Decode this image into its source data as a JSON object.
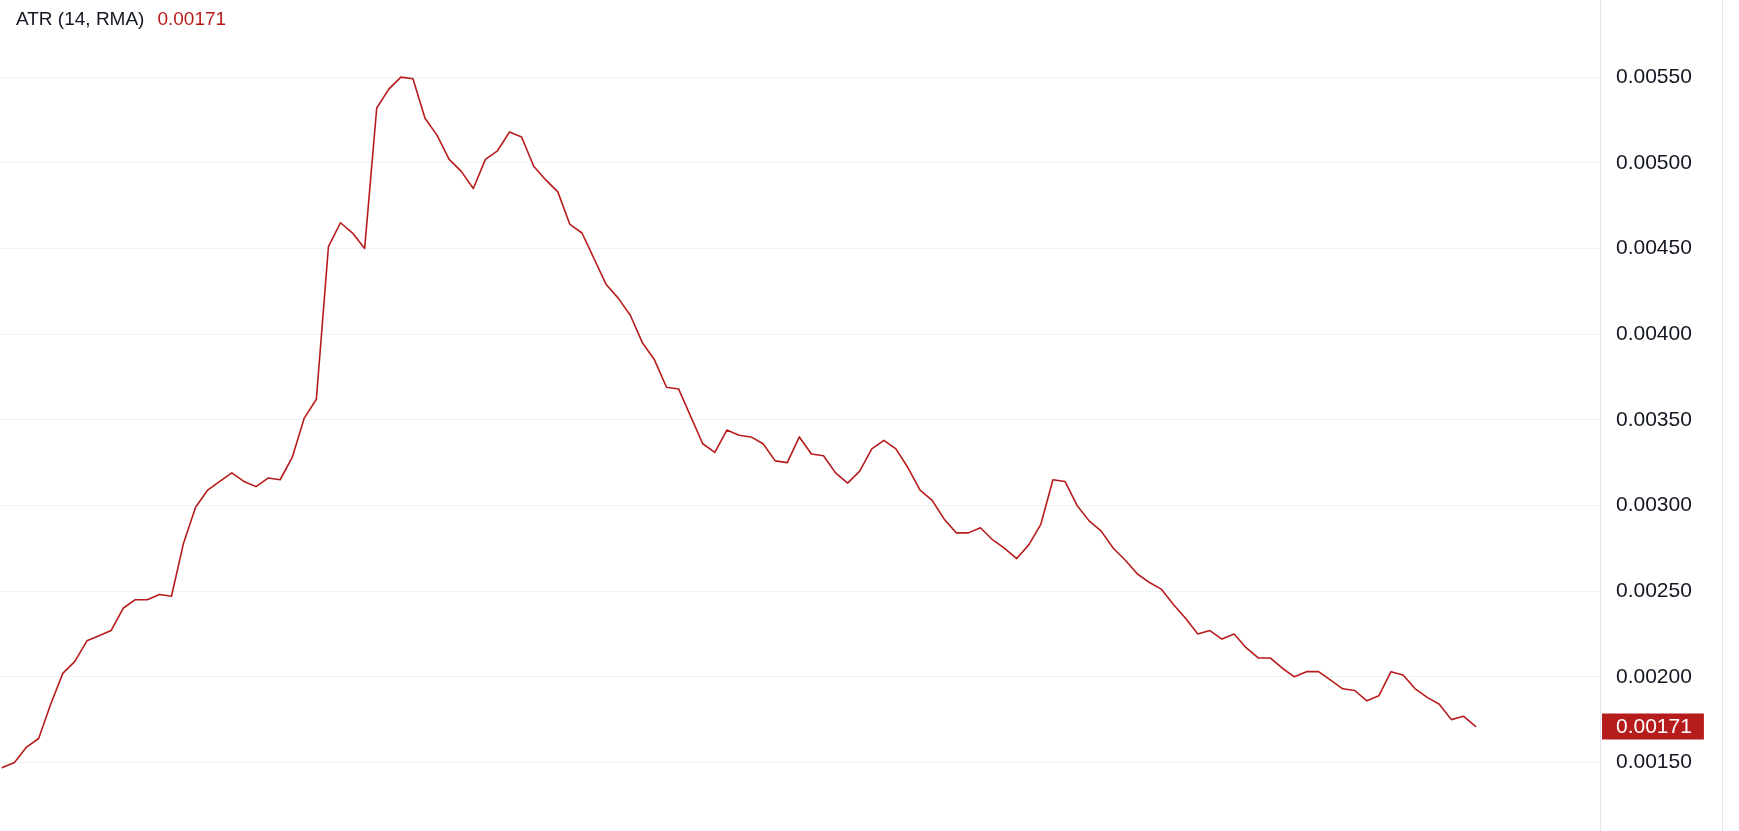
{
  "chart_data": {
    "type": "line",
    "title": "ATR (14, RMA)",
    "annotations": [
      "0.00171",
      "0.00171"
    ],
    "categories": [
      null,
      null,
      null,
      null,
      null,
      null,
      null,
      null,
      null,
      null,
      null,
      null,
      null,
      null,
      null,
      null,
      null,
      null,
      null,
      null,
      null,
      null,
      null,
      null,
      null,
      null,
      null,
      null,
      null,
      null,
      null,
      null,
      null,
      null,
      null,
      null,
      null,
      null,
      null,
      null,
      null,
      null,
      null,
      null,
      null,
      null,
      null,
      null,
      null,
      null,
      null,
      null,
      null,
      null,
      null,
      null,
      null,
      null,
      null,
      null,
      null,
      null,
      null,
      null,
      null,
      null,
      null,
      null,
      null,
      null,
      null,
      null,
      null,
      null,
      null,
      null,
      null,
      null,
      null,
      null,
      null,
      null,
      null,
      null,
      null,
      null,
      null,
      null,
      null,
      null,
      null,
      null,
      null,
      null,
      null,
      null,
      null,
      null,
      null,
      null,
      null,
      null,
      null,
      null,
      null,
      null,
      null,
      null,
      null,
      null,
      null,
      null,
      null,
      null,
      null,
      null,
      null,
      null,
      null,
      null,
      null,
      null,
      null
    ],
    "series": [
      {
        "color": "#b71c1c",
        "values": [
          0.00147,
          0.0015,
          0.00159,
          0.00164,
          0.00184,
          0.00202,
          0.00209,
          0.00221,
          0.00224,
          0.00227,
          0.0024,
          0.00245,
          0.00245,
          0.00248,
          0.00247,
          0.00278,
          0.00299,
          0.00309,
          0.00314,
          0.00319,
          0.00314,
          0.00311,
          0.00316,
          0.00315,
          0.00328,
          0.00351,
          0.00362,
          0.00451,
          0.00465,
          0.00459,
          0.0045,
          0.00532,
          0.00543,
          0.0055,
          0.00549,
          0.00526,
          0.00516,
          0.00502,
          0.00495,
          0.00485,
          0.00502,
          0.00507,
          0.00518,
          0.00515,
          0.00498,
          0.0049,
          0.00483,
          0.00464,
          0.00459,
          0.00444,
          0.00429,
          0.00421,
          0.00411,
          0.00395,
          0.00385,
          0.00369,
          0.00368,
          0.00352,
          0.00336,
          0.00331,
          0.00344,
          0.00341,
          0.0034,
          0.00336,
          0.00326,
          0.00325,
          0.0034,
          0.0033,
          0.00329,
          0.00319,
          0.00313,
          0.0032,
          0.00333,
          0.00338,
          0.00333,
          0.00322,
          0.00309,
          0.00303,
          0.00292,
          0.00284,
          0.00284,
          0.00287,
          0.0028,
          0.00275,
          0.00269,
          0.00277,
          0.00289,
          0.00315,
          0.00314,
          0.003,
          0.00291,
          0.00285,
          0.00275,
          0.00268,
          0.0026,
          0.00255,
          0.00251,
          0.00242,
          0.00234,
          0.00225,
          0.00227,
          0.00222,
          0.00225,
          0.00217,
          0.00211,
          0.00211,
          0.00205,
          0.002,
          0.00203,
          0.00203,
          0.00198,
          0.00193,
          0.00192,
          0.00186,
          0.00189,
          0.00203,
          0.00201,
          0.00193,
          0.00188,
          0.00184,
          0.00175,
          0.00177,
          0.00171
        ]
      }
    ],
    "ylim": [
      0.0011,
      0.00595
    ],
    "yticks": [
      {
        "value": 0.0015,
        "label": "0.00150"
      },
      {
        "value": 0.002,
        "label": "0.00200"
      },
      {
        "value": 0.0025,
        "label": "0.00250"
      },
      {
        "value": 0.003,
        "label": "0.00300"
      },
      {
        "value": 0.0035,
        "label": "0.00350"
      },
      {
        "value": 0.004,
        "label": "0.00400"
      },
      {
        "value": 0.0045,
        "label": "0.00450"
      },
      {
        "value": 0.005,
        "label": "0.00500"
      },
      {
        "value": 0.0055,
        "label": "0.00550"
      }
    ],
    "grid": "y"
  }
}
